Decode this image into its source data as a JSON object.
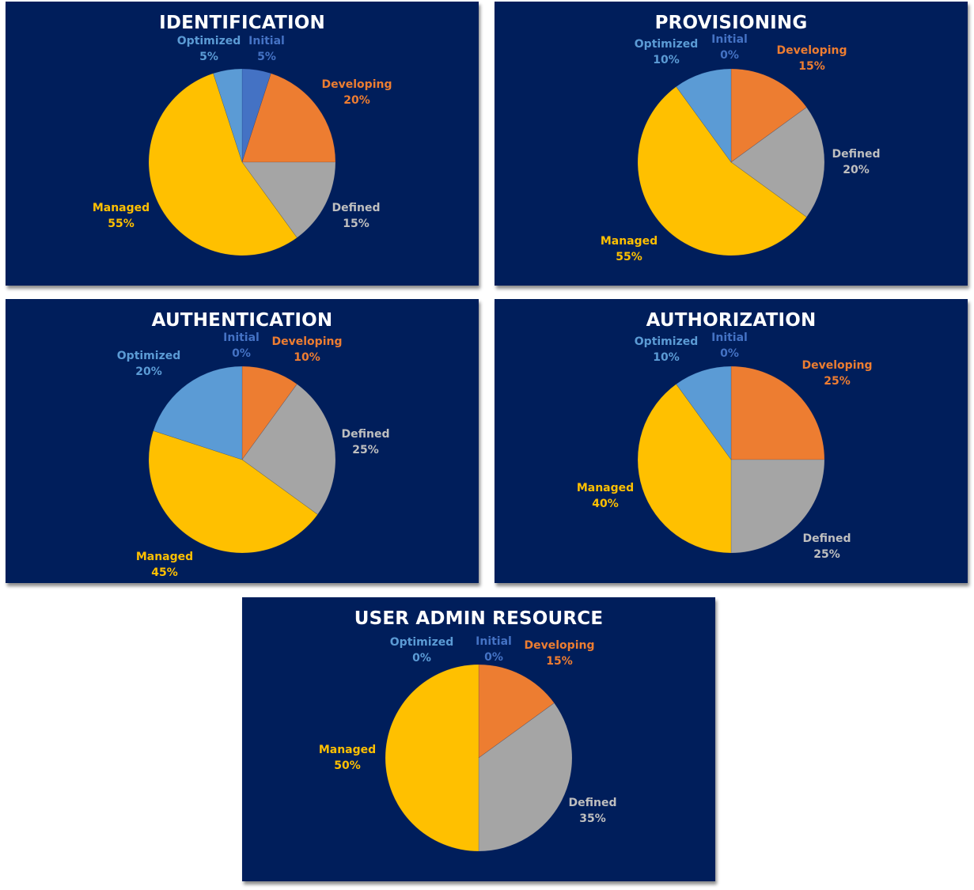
{
  "chart_data": [
    {
      "type": "pie",
      "title": "IDENTIFICATION",
      "categories": [
        "Initial",
        "Developing",
        "Defined",
        "Managed",
        "Optimized"
      ],
      "values": [
        5,
        20,
        15,
        55,
        5
      ],
      "labels": [
        "5%",
        "20%",
        "15%",
        "55%",
        "5%"
      ]
    },
    {
      "type": "pie",
      "title": "PROVISIONING",
      "categories": [
        "Initial",
        "Developing",
        "Defined",
        "Managed",
        "Optimized"
      ],
      "values": [
        0,
        15,
        20,
        55,
        10
      ],
      "labels": [
        "0%",
        "15%",
        "20%",
        "55%",
        "10%"
      ]
    },
    {
      "type": "pie",
      "title": "AUTHENTICATION",
      "categories": [
        "Initial",
        "Developing",
        "Defined",
        "Managed",
        "Optimized"
      ],
      "values": [
        0,
        10,
        25,
        45,
        20
      ],
      "labels": [
        "0%",
        "10%",
        "25%",
        "45%",
        "20%"
      ]
    },
    {
      "type": "pie",
      "title": "AUTHORIZATION",
      "categories": [
        "Initial",
        "Developing",
        "Defined",
        "Managed",
        "Optimized"
      ],
      "values": [
        0,
        25,
        25,
        40,
        10
      ],
      "labels": [
        "0%",
        "25%",
        "25%",
        "40%",
        "10%"
      ]
    },
    {
      "type": "pie",
      "title": "USER ADMIN RESOURCE",
      "categories": [
        "Initial",
        "Developing",
        "Defined",
        "Managed",
        "Optimized"
      ],
      "values": [
        0,
        15,
        35,
        50,
        0
      ],
      "labels": [
        "0%",
        "15%",
        "35%",
        "50%",
        "0%"
      ]
    }
  ],
  "colors": {
    "background": "#001e5b",
    "title": "#ffffff",
    "Initial": "#4472c4",
    "Developing": "#ed7d31",
    "Defined": "#a5a5a5",
    "Managed": "#ffc000",
    "Optimized": "#5b9bd5"
  },
  "label_colors": {
    "Initial": "#4472c4",
    "Developing": "#ed7d31",
    "Defined": "#bfbfbf",
    "Managed": "#ffc000",
    "Optimized": "#5b9bd5"
  }
}
